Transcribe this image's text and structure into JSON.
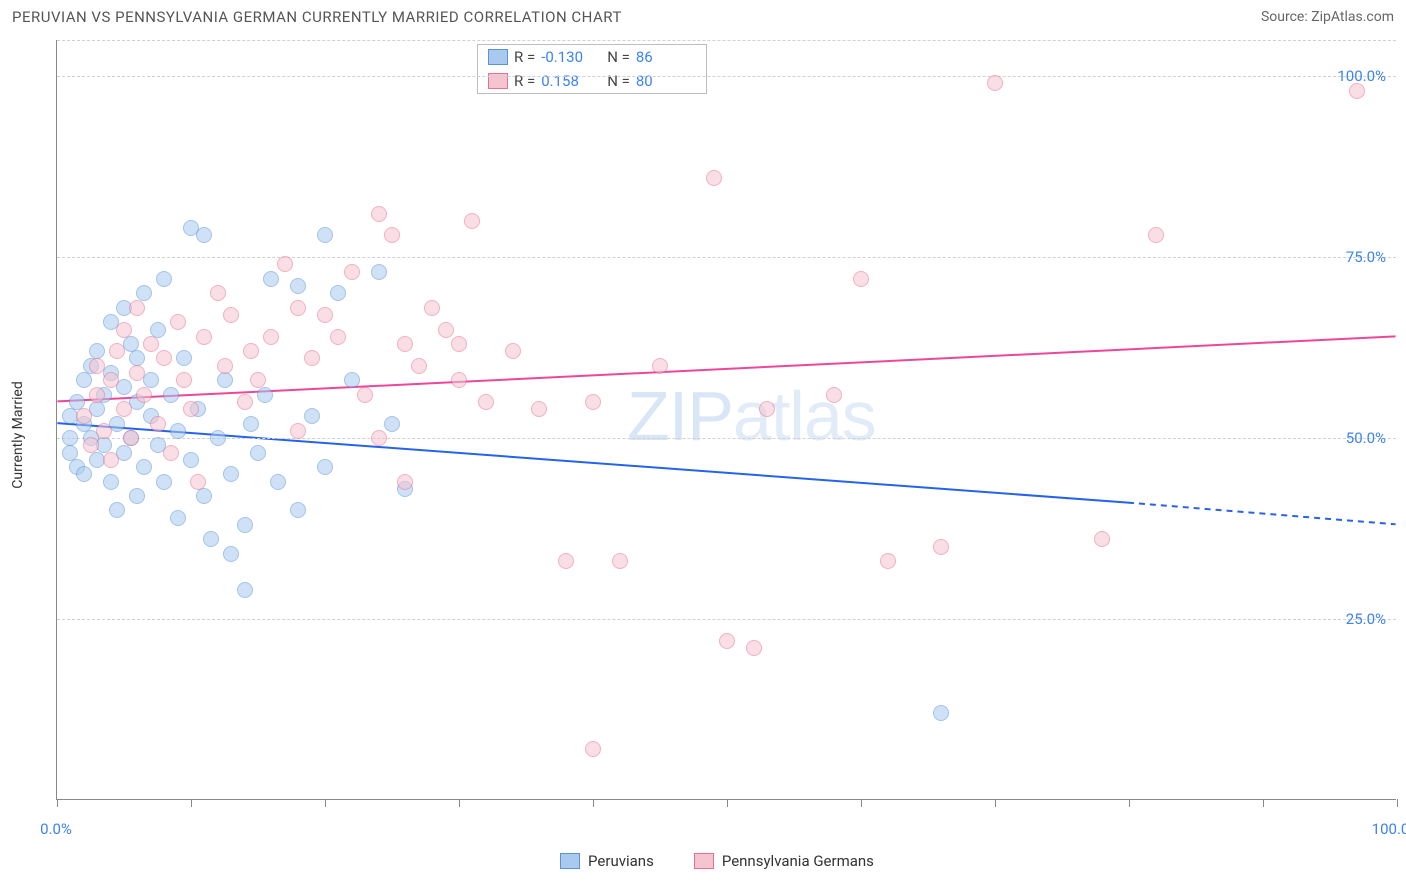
{
  "title": "PERUVIAN VS PENNSYLVANIA GERMAN CURRENTLY MARRIED CORRELATION CHART",
  "source_label": "Source: ZipAtlas.com",
  "watermark_main": "ZIP",
  "watermark_sub": "atlas",
  "chart": {
    "type": "scatter",
    "xlim": [
      0,
      100
    ],
    "ylim": [
      0,
      105
    ],
    "x_ticks": [
      0,
      10,
      20,
      30,
      40,
      50,
      60,
      70,
      80,
      90,
      100
    ],
    "x_tick_labels_shown": {
      "0": "0.0%",
      "100": "100.0%"
    },
    "y_gridlines": [
      25,
      50,
      75,
      100
    ],
    "y_tick_labels": {
      "25": "25.0%",
      "50": "50.0%",
      "75": "75.0%",
      "100": "100.0%"
    },
    "y_axis_title": "Currently Married",
    "background_color": "#ffffff",
    "grid_color": "#d0d0d0",
    "axis_color": "#888888",
    "marker_size": 16,
    "marker_opacity": 0.55,
    "series": [
      {
        "name": "Peruvians",
        "fill": "#a9c9ef",
        "stroke": "#5b93d6",
        "trend_color": "#2563eb",
        "trend_width": 2,
        "trend": {
          "x1": 0,
          "y1": 52,
          "x2_solid": 80,
          "y2_solid": 41,
          "x2_dash": 100,
          "y2_dash": 38
        },
        "R": "-0.130",
        "N": "86",
        "points": [
          [
            1,
            50
          ],
          [
            1,
            53
          ],
          [
            1,
            48
          ],
          [
            1.5,
            55
          ],
          [
            1.5,
            46
          ],
          [
            2,
            52
          ],
          [
            2,
            58
          ],
          [
            2,
            45
          ],
          [
            2.5,
            60
          ],
          [
            2.5,
            50
          ],
          [
            3,
            47
          ],
          [
            3,
            54
          ],
          [
            3,
            62
          ],
          [
            3.5,
            49
          ],
          [
            3.5,
            56
          ],
          [
            4,
            44
          ],
          [
            4,
            59
          ],
          [
            4,
            66
          ],
          [
            4.5,
            52
          ],
          [
            4.5,
            40
          ],
          [
            5,
            48
          ],
          [
            5,
            57
          ],
          [
            5,
            68
          ],
          [
            5.5,
            63
          ],
          [
            5.5,
            50
          ],
          [
            6,
            42
          ],
          [
            6,
            55
          ],
          [
            6,
            61
          ],
          [
            6.5,
            70
          ],
          [
            6.5,
            46
          ],
          [
            7,
            53
          ],
          [
            7,
            58
          ],
          [
            7.5,
            65
          ],
          [
            7.5,
            49
          ],
          [
            8,
            72
          ],
          [
            8,
            44
          ],
          [
            8.5,
            56
          ],
          [
            9,
            39
          ],
          [
            9,
            51
          ],
          [
            9.5,
            61
          ],
          [
            10,
            79
          ],
          [
            10,
            47
          ],
          [
            10.5,
            54
          ],
          [
            11,
            78
          ],
          [
            11,
            42
          ],
          [
            11.5,
            36
          ],
          [
            12,
            50
          ],
          [
            12.5,
            58
          ],
          [
            13,
            34
          ],
          [
            13,
            45
          ],
          [
            14,
            29
          ],
          [
            14,
            38
          ],
          [
            14.5,
            52
          ],
          [
            15,
            48
          ],
          [
            15.5,
            56
          ],
          [
            16,
            72
          ],
          [
            16.5,
            44
          ],
          [
            18,
            71
          ],
          [
            18,
            40
          ],
          [
            19,
            53
          ],
          [
            20,
            78
          ],
          [
            20,
            46
          ],
          [
            21,
            70
          ],
          [
            22,
            58
          ],
          [
            24,
            73
          ],
          [
            25,
            52
          ],
          [
            26,
            43
          ],
          [
            66,
            12
          ]
        ]
      },
      {
        "name": "Pennsylvania Germans",
        "fill": "#f5c4d1",
        "stroke": "#e8718f",
        "trend_color": "#ec4899",
        "trend_width": 2,
        "trend": {
          "x1": 0,
          "y1": 55,
          "x2_solid": 100,
          "y2_solid": 64,
          "x2_dash": 100,
          "y2_dash": 64
        },
        "R": "0.158",
        "N": "80",
        "points": [
          [
            2,
            53
          ],
          [
            2.5,
            49
          ],
          [
            3,
            56
          ],
          [
            3,
            60
          ],
          [
            3.5,
            51
          ],
          [
            4,
            58
          ],
          [
            4,
            47
          ],
          [
            4.5,
            62
          ],
          [
            5,
            54
          ],
          [
            5,
            65
          ],
          [
            5.5,
            50
          ],
          [
            6,
            59
          ],
          [
            6,
            68
          ],
          [
            6.5,
            56
          ],
          [
            7,
            63
          ],
          [
            7.5,
            52
          ],
          [
            8,
            61
          ],
          [
            8.5,
            48
          ],
          [
            9,
            66
          ],
          [
            9.5,
            58
          ],
          [
            10,
            54
          ],
          [
            10.5,
            44
          ],
          [
            11,
            64
          ],
          [
            12,
            70
          ],
          [
            12.5,
            60
          ],
          [
            13,
            67
          ],
          [
            14,
            55
          ],
          [
            14.5,
            62
          ],
          [
            15,
            58
          ],
          [
            16,
            64
          ],
          [
            17,
            74
          ],
          [
            18,
            68
          ],
          [
            18,
            51
          ],
          [
            19,
            61
          ],
          [
            20,
            67
          ],
          [
            21,
            64
          ],
          [
            22,
            73
          ],
          [
            23,
            56
          ],
          [
            24,
            81
          ],
          [
            24,
            50
          ],
          [
            25,
            78
          ],
          [
            26,
            63
          ],
          [
            26,
            44
          ],
          [
            27,
            60
          ],
          [
            28,
            68
          ],
          [
            29,
            65
          ],
          [
            30,
            58
          ],
          [
            30,
            63
          ],
          [
            31,
            80
          ],
          [
            32,
            55
          ],
          [
            34,
            62
          ],
          [
            36,
            54
          ],
          [
            38,
            33
          ],
          [
            40,
            7
          ],
          [
            40,
            55
          ],
          [
            42,
            33
          ],
          [
            45,
            60
          ],
          [
            49,
            86
          ],
          [
            50,
            22
          ],
          [
            52,
            21
          ],
          [
            53,
            54
          ],
          [
            58,
            56
          ],
          [
            60,
            72
          ],
          [
            62,
            33
          ],
          [
            66,
            35
          ],
          [
            70,
            99
          ],
          [
            78,
            36
          ],
          [
            82,
            78
          ],
          [
            97,
            98
          ]
        ]
      }
    ],
    "bottom_legend": [
      {
        "label": "Peruvians",
        "fill": "#a9c9ef",
        "stroke": "#5b93d6"
      },
      {
        "label": "Pennsylvania Germans",
        "fill": "#f5c4d1",
        "stroke": "#e8718f"
      }
    ],
    "stats_box": {
      "rows": [
        {
          "swatch_fill": "#a9c9ef",
          "swatch_stroke": "#5b93d6",
          "R_label": "R =",
          "R": "-0.130",
          "N_label": "N =",
          "N": "86"
        },
        {
          "swatch_fill": "#f5c4d1",
          "swatch_stroke": "#e8718f",
          "R_label": "R =",
          "R": " 0.158",
          "N_label": "N =",
          "N": "80"
        }
      ]
    }
  }
}
